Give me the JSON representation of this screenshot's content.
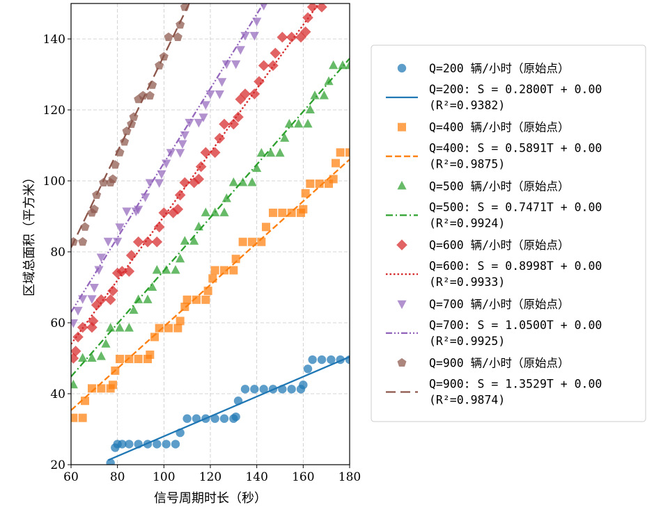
{
  "chart_data": {
    "type": "scatter",
    "xlabel": "信号周期时长（秒）",
    "ylabel": "区域总面积（平方米）",
    "xlim": [
      60,
      180
    ],
    "ylim": [
      20,
      150
    ],
    "xticks": [
      60,
      80,
      100,
      120,
      140,
      160,
      180
    ],
    "yticks": [
      20,
      40,
      60,
      80,
      100,
      120,
      140
    ],
    "grid": true,
    "legend_position": "right",
    "series": [
      {
        "name": "Q=200 辆/小时（原始点）",
        "fit_label": "Q=200: S = 0.2800T + 0.00",
        "r2_label": "(R²=0.9382)",
        "color": "#1f77b4",
        "marker": "circle",
        "line_style": "solid",
        "slope": 0.28,
        "intercept": 0.0,
        "points": [
          [
            77,
            20.5
          ],
          [
            79,
            24.8
          ],
          [
            80,
            25.8
          ],
          [
            82,
            25.8
          ],
          [
            85,
            25.8
          ],
          [
            89,
            25.8
          ],
          [
            93,
            25.8
          ],
          [
            97,
            25.8
          ],
          [
            101,
            25.8
          ],
          [
            105,
            25.8
          ],
          [
            107,
            29
          ],
          [
            110,
            33
          ],
          [
            114,
            33
          ],
          [
            118,
            33
          ],
          [
            122,
            33
          ],
          [
            126,
            33
          ],
          [
            130,
            33
          ],
          [
            131,
            33.5
          ],
          [
            132,
            38
          ],
          [
            135,
            41.3
          ],
          [
            139,
            41.3
          ],
          [
            143,
            41.3
          ],
          [
            147,
            41.3
          ],
          [
            151,
            41.3
          ],
          [
            155,
            41.3
          ],
          [
            159,
            41.3
          ],
          [
            160,
            42.5
          ],
          [
            162,
            47
          ],
          [
            164,
            49.6
          ],
          [
            168,
            49.6
          ],
          [
            172,
            49.6
          ],
          [
            176,
            49.6
          ],
          [
            180,
            49.6
          ]
        ]
      },
      {
        "name": "Q=400 辆/小时（原始点）",
        "fit_label": "Q=400: S = 0.5891T + 0.00",
        "r2_label": "(R²=0.9875)",
        "color": "#ff7f0e",
        "marker": "square",
        "line_style": "dashed",
        "slope": 0.5891,
        "intercept": 0.0,
        "points": [
          [
            61,
            33.2
          ],
          [
            65,
            33.2
          ],
          [
            66,
            38
          ],
          [
            69,
            41.5
          ],
          [
            73,
            41.5
          ],
          [
            77,
            41.5
          ],
          [
            78,
            42.5
          ],
          [
            79,
            46.5
          ],
          [
            81,
            49.8
          ],
          [
            85,
            49.8
          ],
          [
            89,
            49.8
          ],
          [
            93,
            49.8
          ],
          [
            94,
            51
          ],
          [
            96,
            56
          ],
          [
            98,
            58.5
          ],
          [
            102,
            58.5
          ],
          [
            106,
            58.5
          ],
          [
            107,
            60.5
          ],
          [
            109,
            64.5
          ],
          [
            110,
            66.5
          ],
          [
            114,
            66.5
          ],
          [
            118,
            66.5
          ],
          [
            119,
            69
          ],
          [
            121,
            72.5
          ],
          [
            122,
            74.8
          ],
          [
            126,
            74.8
          ],
          [
            130,
            74.8
          ],
          [
            131,
            78
          ],
          [
            134,
            82.8
          ],
          [
            138,
            82.8
          ],
          [
            142,
            82.8
          ],
          [
            144,
            87
          ],
          [
            147,
            91
          ],
          [
            151,
            91
          ],
          [
            155,
            91
          ],
          [
            159,
            91
          ],
          [
            160,
            92
          ],
          [
            161,
            96.5
          ],
          [
            163,
            99.2
          ],
          [
            167,
            99.2
          ],
          [
            171,
            99.2
          ],
          [
            173,
            100.5
          ],
          [
            174,
            105
          ],
          [
            176,
            108
          ],
          [
            180,
            108
          ]
        ]
      },
      {
        "name": "Q=500 辆/小时（原始点）",
        "fit_label": "Q=500: S = 0.7471T + 0.00",
        "r2_label": "(R²=0.9924)",
        "color": "#2ca02c",
        "marker": "triangle-up",
        "line_style": "dashdot",
        "slope": 0.7471,
        "intercept": 0.0,
        "points": [
          [
            61,
            42.5
          ],
          [
            65,
            50
          ],
          [
            69,
            50
          ],
          [
            73,
            50.5
          ],
          [
            75,
            54
          ],
          [
            77,
            58.5
          ],
          [
            81,
            58.5
          ],
          [
            85,
            58.5
          ],
          [
            87,
            63.5
          ],
          [
            89,
            66.5
          ],
          [
            93,
            66.5
          ],
          [
            95,
            70
          ],
          [
            97,
            74.8
          ],
          [
            101,
            74.8
          ],
          [
            105,
            74.8
          ],
          [
            107,
            78
          ],
          [
            109,
            83
          ],
          [
            113,
            83
          ],
          [
            115,
            87
          ],
          [
            118,
            91
          ],
          [
            122,
            91
          ],
          [
            126,
            91
          ],
          [
            127,
            95
          ],
          [
            130,
            99.5
          ],
          [
            134,
            99.5
          ],
          [
            138,
            99.5
          ],
          [
            140,
            103.5
          ],
          [
            142,
            107.8
          ],
          [
            146,
            107.8
          ],
          [
            150,
            107.8
          ],
          [
            152,
            112
          ],
          [
            154,
            116
          ],
          [
            158,
            116
          ],
          [
            162,
            116
          ],
          [
            163,
            120
          ],
          [
            165,
            124
          ],
          [
            169,
            124
          ],
          [
            171,
            128
          ],
          [
            173,
            132.5
          ],
          [
            177,
            132.5
          ],
          [
            180,
            132.5
          ]
        ]
      },
      {
        "name": "Q=600 辆/小时（原始点）",
        "fit_label": "Q=600: S = 0.8998T + 0.00",
        "r2_label": "(R²=0.9933)",
        "color": "#d62728",
        "marker": "diamond",
        "line_style": "dotted",
        "slope": 0.8998,
        "intercept": 0.0,
        "points": [
          [
            61,
            50
          ],
          [
            62,
            52
          ],
          [
            63,
            56
          ],
          [
            65,
            58.7
          ],
          [
            69,
            58.7
          ],
          [
            69.5,
            60.5
          ],
          [
            71,
            65
          ],
          [
            73,
            66.5
          ],
          [
            77,
            66.5
          ],
          [
            78,
            69
          ],
          [
            80,
            74
          ],
          [
            82,
            74.5
          ],
          [
            85,
            74.5
          ],
          [
            86,
            79
          ],
          [
            89,
            82.8
          ],
          [
            93,
            82.8
          ],
          [
            97,
            82.8
          ],
          [
            98,
            87
          ],
          [
            100,
            91
          ],
          [
            104,
            91
          ],
          [
            106,
            92
          ],
          [
            107,
            96
          ],
          [
            109,
            99.5
          ],
          [
            113,
            99.5
          ],
          [
            115,
            100.5
          ],
          [
            116,
            104
          ],
          [
            118,
            108
          ],
          [
            122,
            108
          ],
          [
            124,
            112
          ],
          [
            126,
            116
          ],
          [
            130,
            116
          ],
          [
            132,
            118
          ],
          [
            133,
            123
          ],
          [
            135,
            124.5
          ],
          [
            139,
            124.5
          ],
          [
            141,
            128
          ],
          [
            143,
            132.5
          ],
          [
            147,
            132.5
          ],
          [
            148,
            136
          ],
          [
            151,
            140.5
          ],
          [
            155,
            140.5
          ],
          [
            159,
            140.5
          ],
          [
            161,
            142
          ],
          [
            162,
            146
          ],
          [
            164,
            149
          ],
          [
            168,
            149
          ]
        ]
      },
      {
        "name": "Q=700 辆/小时（原始点）",
        "fit_label": "Q=700: S = 1.0500T + 0.00",
        "r2_label": "(R²=0.9925)",
        "color": "#9467bd",
        "marker": "triangle-down",
        "line_style": "dashdotdot",
        "slope": 1.05,
        "intercept": 0.0,
        "points": [
          [
            61,
            60
          ],
          [
            63,
            63.5
          ],
          [
            65,
            66.8
          ],
          [
            69,
            66.8
          ],
          [
            70,
            70
          ],
          [
            72,
            75
          ],
          [
            73,
            78.5
          ],
          [
            76,
            83
          ],
          [
            80,
            83
          ],
          [
            81,
            87
          ],
          [
            84,
            91.5
          ],
          [
            88,
            91.5
          ],
          [
            89,
            92
          ],
          [
            92,
            95.5
          ],
          [
            94,
            99.5
          ],
          [
            98,
            99.5
          ],
          [
            99,
            102
          ],
          [
            101,
            105
          ],
          [
            103,
            108
          ],
          [
            107,
            108
          ],
          [
            108,
            110.5
          ],
          [
            109,
            113
          ],
          [
            111,
            116.5
          ],
          [
            115,
            116.5
          ],
          [
            117,
            118
          ],
          [
            118,
            121.5
          ],
          [
            120,
            124.5
          ],
          [
            124,
            124.5
          ],
          [
            125,
            128
          ],
          [
            127,
            133
          ],
          [
            131,
            133
          ],
          [
            133,
            137
          ],
          [
            135,
            141
          ],
          [
            139,
            141
          ],
          [
            140,
            145
          ],
          [
            143,
            149.5
          ]
        ]
      },
      {
        "name": "Q=900 辆/小时（原始点）",
        "fit_label": "Q=900: S = 1.3529T + 0.00",
        "r2_label": "(R²=0.9874)",
        "color": "#8c564b",
        "marker": "pentagon",
        "line_style": "longdash",
        "slope": 1.3529,
        "intercept": 0.0,
        "points": [
          [
            61,
            82.8
          ],
          [
            65,
            82.8
          ],
          [
            66,
            87
          ],
          [
            69,
            91
          ],
          [
            70,
            92
          ],
          [
            71,
            96
          ],
          [
            74,
            99.5
          ],
          [
            77,
            99.5
          ],
          [
            78,
            100.5
          ],
          [
            79,
            104.5
          ],
          [
            81,
            108
          ],
          [
            83,
            111
          ],
          [
            84,
            114
          ],
          [
            86,
            116
          ],
          [
            87,
            118
          ],
          [
            89,
            123
          ],
          [
            91,
            124
          ],
          [
            94,
            124
          ],
          [
            95,
            127
          ],
          [
            98,
            132.5
          ],
          [
            100,
            135
          ],
          [
            102,
            140.5
          ],
          [
            106,
            140.5
          ],
          [
            107,
            144
          ],
          [
            109,
            149
          ]
        ]
      }
    ]
  }
}
